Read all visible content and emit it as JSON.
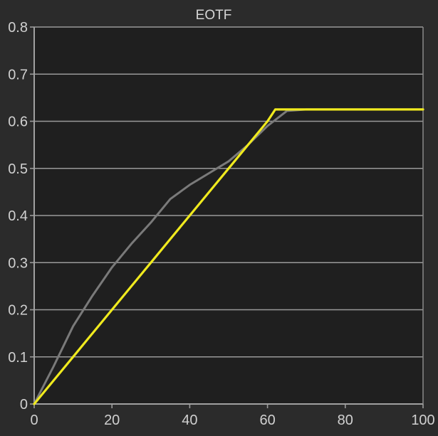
{
  "chart_data": {
    "type": "line",
    "title": "EOTF",
    "xlabel": "",
    "ylabel": "",
    "xlim": [
      0,
      100
    ],
    "ylim": [
      0,
      0.8
    ],
    "x_ticks": [
      0,
      20,
      40,
      60,
      80,
      100
    ],
    "y_ticks": [
      0,
      0.1,
      0.2,
      0.3,
      0.4,
      0.5,
      0.6,
      0.7,
      0.8
    ],
    "x_tick_labels": [
      "0",
      "20",
      "40",
      "60",
      "80",
      "100"
    ],
    "y_tick_labels": [
      "0",
      "0.1",
      "0.2",
      "0.3",
      "0.4",
      "0.5",
      "0.6",
      "0.7",
      "0.8"
    ],
    "grid": "horizontal",
    "legend": "none",
    "series": [
      {
        "color": "#7a7a7a",
        "x": [
          0,
          5,
          10,
          15,
          20,
          25,
          30,
          35,
          40,
          45,
          50,
          55,
          60,
          65,
          70,
          75,
          80,
          85,
          90,
          95,
          100
        ],
        "y": [
          0,
          0.08,
          0.165,
          0.23,
          0.29,
          0.34,
          0.385,
          0.435,
          0.465,
          0.49,
          0.515,
          0.55,
          0.59,
          0.622,
          0.625,
          0.625,
          0.625,
          0.625,
          0.625,
          0.625,
          0.625
        ]
      },
      {
        "color": "#f0ea1e",
        "x": [
          0,
          5,
          10,
          15,
          20,
          25,
          30,
          35,
          40,
          45,
          50,
          55,
          60,
          62,
          65,
          70,
          75,
          80,
          85,
          90,
          95,
          100
        ],
        "y": [
          0,
          0.05,
          0.1,
          0.15,
          0.2,
          0.25,
          0.3,
          0.35,
          0.4,
          0.45,
          0.5,
          0.55,
          0.6,
          0.625,
          0.625,
          0.625,
          0.625,
          0.625,
          0.625,
          0.625,
          0.625,
          0.625
        ]
      }
    ]
  }
}
